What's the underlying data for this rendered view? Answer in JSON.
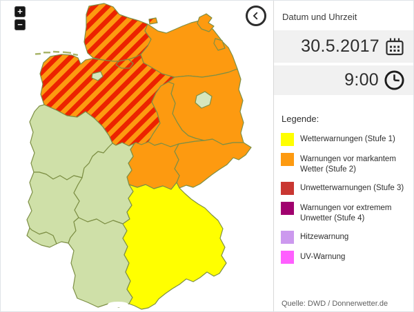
{
  "map": {
    "controls": {
      "zoom_in": "+",
      "zoom_out": "−"
    },
    "stripe_colors": {
      "red": "#ec2300",
      "orange": "#fd9a10"
    },
    "warning_colors": {
      "stufe1": "#ffff00",
      "stufe2": "#fd9a10",
      "none": "#cfe0a8",
      "city_none": "#d6e6bd"
    },
    "border_color": "#7d8f45",
    "states": [
      {
        "id": "niedersachsen",
        "name": "Niedersachsen",
        "warning": "stufe2_stufe3"
      },
      {
        "id": "schleswig-holstein",
        "name": "Schleswig-Holstein",
        "warning": "stufe2_stufe3"
      },
      {
        "id": "mecklenburg-vorpommern",
        "name": "Mecklenburg-Vorpommern",
        "warning": "stufe2"
      },
      {
        "id": "brandenburg",
        "name": "Brandenburg",
        "warning": "stufe2"
      },
      {
        "id": "sachsen-anhalt",
        "name": "Sachsen-Anhalt",
        "warning": "stufe2"
      },
      {
        "id": "sachsen",
        "name": "Sachsen",
        "warning": "stufe2"
      },
      {
        "id": "thueringen",
        "name": "Thüringen",
        "warning": "stufe2"
      },
      {
        "id": "nordrhein-westfalen",
        "name": "Nordrhein-Westfalen",
        "warning": "none"
      },
      {
        "id": "hessen",
        "name": "Hessen",
        "warning": "none"
      },
      {
        "id": "rheinland-pfalz",
        "name": "Rheinland-Pfalz",
        "warning": "none"
      },
      {
        "id": "saarland",
        "name": "Saarland",
        "warning": "none"
      },
      {
        "id": "baden-wuerttemberg",
        "name": "Baden-Württemberg",
        "warning": "none"
      },
      {
        "id": "bayern",
        "name": "Bayern",
        "warning": "stufe1"
      },
      {
        "id": "bremen",
        "name": "Bremen",
        "warning": "city_none"
      },
      {
        "id": "hamburg",
        "name": "Hamburg",
        "warning": "stufe2_stufe3"
      },
      {
        "id": "berlin",
        "name": "Berlin",
        "warning": "city_none"
      }
    ]
  },
  "panel": {
    "datetime": {
      "title": "Datum und Uhrzeit",
      "date": "30.5.2017",
      "time": "9:00"
    },
    "legend": {
      "title": "Legende:",
      "items": [
        {
          "label": "Wetterwarnungen (Stufe 1)",
          "color": "#ffff00"
        },
        {
          "label": "Warnungen vor markantem Wetter (Stufe 2)",
          "color": "#fd9a10"
        },
        {
          "label": "Unwetterwarnungen (Stufe 3)",
          "color": "#c93732"
        },
        {
          "label": "Warnungen vor extremem Unwetter (Stufe 4)",
          "color": "#a0006e"
        },
        {
          "label": "Hitzewarnung",
          "color": "#cc99ee"
        },
        {
          "label": "UV-Warnung",
          "color": "#ff5fff"
        }
      ]
    },
    "source": "Quelle: DWD / Donnerwetter.de"
  }
}
